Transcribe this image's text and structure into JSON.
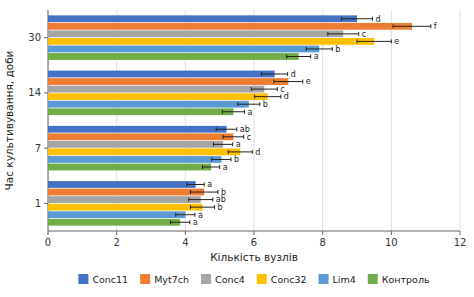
{
  "chart_data": {
    "type": "bar",
    "orientation": "horizontal",
    "xlabel": "Кількість вузлів",
    "ylabel": "Час культивування, доби",
    "categories": [
      "1",
      "7",
      "14",
      "30"
    ],
    "series": [
      {
        "name": "Conc11",
        "color": "#4472c4",
        "values": [
          4.3,
          5.2,
          6.6,
          9.0
        ],
        "errors": [
          0.25,
          0.3,
          0.38,
          0.45
        ],
        "annotations": [
          "a",
          "ab",
          "d",
          "d"
        ]
      },
      {
        "name": "Myt7ch",
        "color": "#ed7d31",
        "values": [
          4.55,
          5.4,
          7.0,
          10.6
        ],
        "errors": [
          0.4,
          0.3,
          0.42,
          0.55
        ],
        "annotations": [
          "b",
          "c",
          "e",
          "f"
        ]
      },
      {
        "name": "Conc4",
        "color": "#a5a5a5",
        "values": [
          4.45,
          5.1,
          6.3,
          8.6
        ],
        "errors": [
          0.35,
          0.28,
          0.38,
          0.45
        ],
        "annotations": [
          "ab",
          "a",
          "c",
          "c"
        ]
      },
      {
        "name": "Conc32",
        "color": "#ffc000",
        "values": [
          4.5,
          5.6,
          6.4,
          9.5
        ],
        "errors": [
          0.35,
          0.35,
          0.38,
          0.5
        ],
        "annotations": [
          "b",
          "d",
          "d",
          "e"
        ]
      },
      {
        "name": "Lim4",
        "color": "#5b9bd5",
        "values": [
          4.0,
          5.05,
          5.85,
          7.9
        ],
        "errors": [
          0.28,
          0.28,
          0.32,
          0.38
        ],
        "annotations": [
          "a",
          "b",
          "b",
          "b"
        ]
      },
      {
        "name": "Контроль",
        "color": "#70ad47",
        "values": [
          3.85,
          4.75,
          5.4,
          7.3
        ],
        "errors": [
          0.28,
          0.25,
          0.32,
          0.35
        ],
        "annotations": [
          "a",
          "a",
          "a",
          "a"
        ]
      }
    ],
    "xlim": [
      0,
      12
    ],
    "xticks": [
      0,
      2,
      4,
      6,
      8,
      10,
      12
    ],
    "grid": true,
    "legend": "bottom"
  }
}
